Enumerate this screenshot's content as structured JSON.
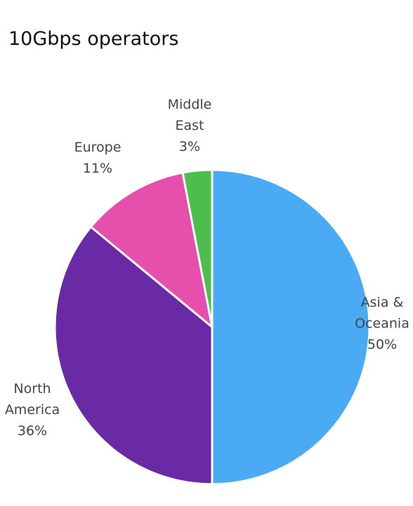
{
  "chart_data": {
    "type": "pie",
    "title": "10Gbps operators",
    "slices": [
      {
        "label_lines": [
          "Asia &",
          "Oceania"
        ],
        "value_label": "50%",
        "value": 50,
        "color": "#4aabf4"
      },
      {
        "label_lines": [
          "North",
          "America"
        ],
        "value_label": "36%",
        "value": 36,
        "color": "#6a2aa6"
      },
      {
        "label_lines": [
          "Europe"
        ],
        "value_label": "11%",
        "value": 11,
        "color": "#e74fad"
      },
      {
        "label_lines": [
          "Middle",
          "East"
        ],
        "value_label": "3%",
        "value": 3,
        "color": "#4dbd4d"
      }
    ],
    "start_angle_deg": 0,
    "direction": "clockwise",
    "legend": "none"
  }
}
